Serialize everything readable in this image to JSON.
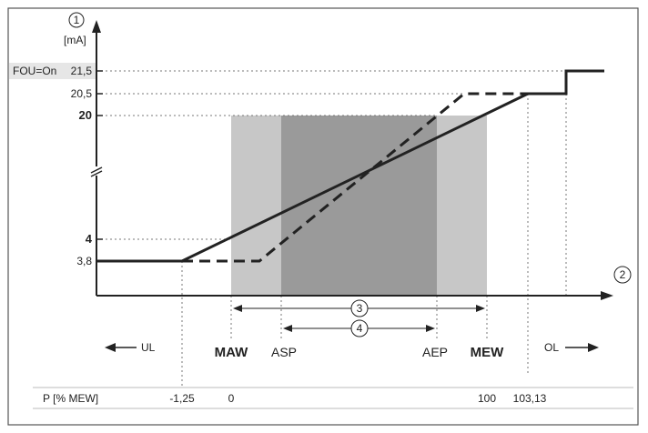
{
  "y_axis": {
    "marker": "1",
    "unit": "[mA]",
    "ticks": [
      {
        "label": "21,5",
        "value": 21.5,
        "prefix": "FOU=On"
      },
      {
        "label": "20,5",
        "value": 20.5
      },
      {
        "label": "20",
        "value": 20,
        "bold": true
      },
      {
        "label": "4",
        "value": 4,
        "bold": true
      },
      {
        "label": "3,8",
        "value": 3.8
      }
    ]
  },
  "x_axis": {
    "marker": "2"
  },
  "ranges": [
    {
      "marker": "3",
      "from": "MAW",
      "to": "MEW"
    },
    {
      "marker": "4",
      "from": "ASP",
      "to": "AEP"
    }
  ],
  "points": {
    "MAW": "MAW",
    "ASP": "ASP",
    "AEP": "AEP",
    "MEW": "MEW"
  },
  "directions": {
    "UL": "UL",
    "OL": "OL"
  },
  "p_row": {
    "header": "P [% MEW]",
    "values": [
      "-1,25",
      "0",
      "100",
      "103,13"
    ]
  },
  "colors": {
    "light_zone": "#c7c7c7",
    "dark_zone": "#9a9a9a",
    "label_bg": "#e6e6e6",
    "line": "#222222"
  }
}
